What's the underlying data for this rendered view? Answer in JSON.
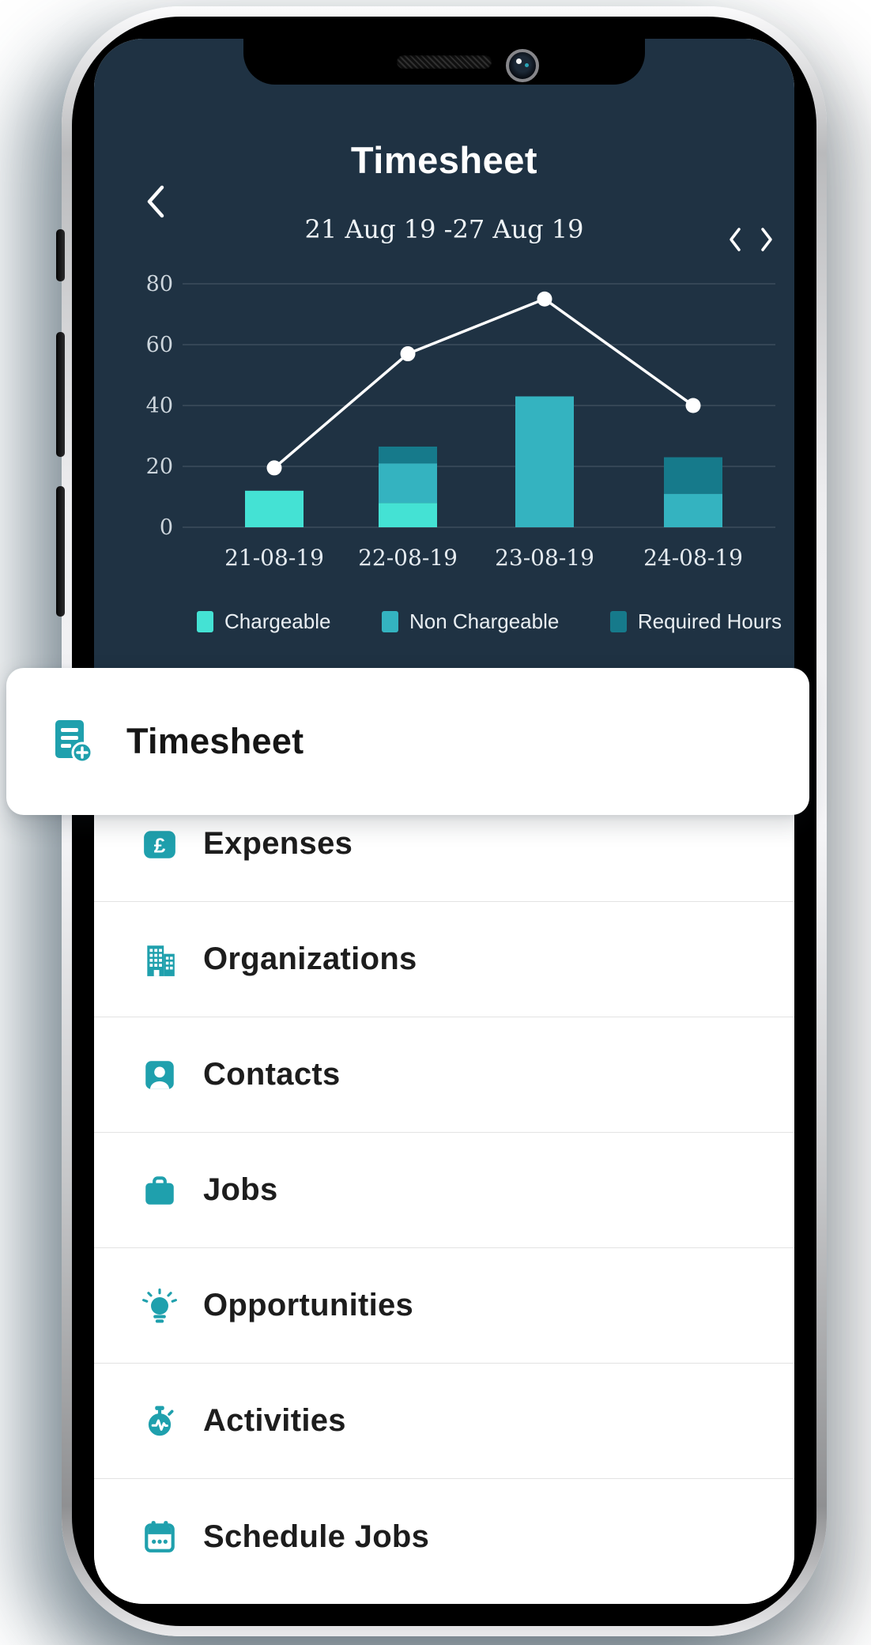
{
  "theme": {
    "header_bg": "#1F3243",
    "accent_icon_color": "#1FA0AD",
    "divider_color": "#E3E3E3",
    "trend_line_color": "#FFFFFF"
  },
  "header": {
    "title": "Timesheet",
    "date_range": "21 Aug 19 -27 Aug 19",
    "icons": {
      "back": "chevron-left",
      "prev_week": "chevron-left",
      "next_week": "chevron-right"
    }
  },
  "chart_data": {
    "type": "bar",
    "stacked": true,
    "categories": [
      "21-08-19",
      "22-08-19",
      "23-08-19",
      "24-08-19"
    ],
    "series": [
      {
        "name": "Chargeable",
        "color": "#44E2D4",
        "values": [
          12,
          8,
          0,
          0
        ]
      },
      {
        "name": "Non Chargeable",
        "color": "#34B3C0",
        "values": [
          0,
          13,
          43,
          11
        ]
      },
      {
        "name": "Required Hours",
        "color": "#167A8B",
        "values": [
          0,
          5.5,
          0,
          12
        ]
      }
    ],
    "line_overlay": {
      "name": "",
      "color": "#FFFFFF",
      "values": [
        19.5,
        57,
        75,
        40
      ]
    },
    "ylim": [
      0,
      80
    ],
    "yticks": [
      0,
      20,
      40,
      60,
      80
    ],
    "grid": true,
    "legend_position": "bottom"
  },
  "menu": {
    "featured": {
      "label": "Timesheet",
      "icon": "timesheet-add-icon"
    },
    "items": [
      {
        "label": "Expenses",
        "icon": "pound-icon"
      },
      {
        "label": "Organizations",
        "icon": "building-icon"
      },
      {
        "label": "Contacts",
        "icon": "contact-icon"
      },
      {
        "label": "Jobs",
        "icon": "briefcase-icon"
      },
      {
        "label": "Opportunities",
        "icon": "lightbulb-icon"
      },
      {
        "label": "Activities",
        "icon": "stopwatch-icon"
      },
      {
        "label": "Schedule Jobs",
        "icon": "calendar-icon"
      }
    ]
  }
}
